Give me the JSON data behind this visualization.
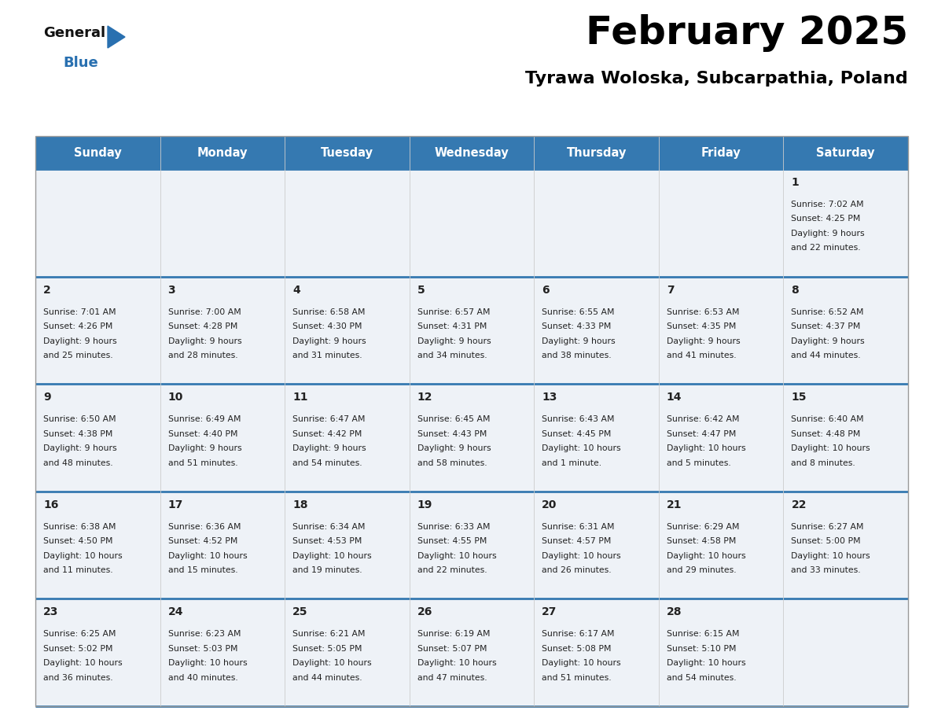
{
  "title": "February 2025",
  "subtitle": "Tyrawa Woloska, Subcarpathia, Poland",
  "days_of_week": [
    "Sunday",
    "Monday",
    "Tuesday",
    "Wednesday",
    "Thursday",
    "Friday",
    "Saturday"
  ],
  "header_bg": "#3579b1",
  "header_text": "#ffffff",
  "cell_bg_light": "#eef2f7",
  "divider_color": "#3579b1",
  "text_color": "#222222",
  "logo_general_color": "#111111",
  "logo_blue_color": "#2970b0",
  "num_rows": 5,
  "calendar_data": [
    {
      "day": 1,
      "col": 6,
      "row": 0,
      "sunrise": "7:02 AM",
      "sunset": "4:25 PM",
      "daylight": "9 hours and 22 minutes."
    },
    {
      "day": 2,
      "col": 0,
      "row": 1,
      "sunrise": "7:01 AM",
      "sunset": "4:26 PM",
      "daylight": "9 hours and 25 minutes."
    },
    {
      "day": 3,
      "col": 1,
      "row": 1,
      "sunrise": "7:00 AM",
      "sunset": "4:28 PM",
      "daylight": "9 hours and 28 minutes."
    },
    {
      "day": 4,
      "col": 2,
      "row": 1,
      "sunrise": "6:58 AM",
      "sunset": "4:30 PM",
      "daylight": "9 hours and 31 minutes."
    },
    {
      "day": 5,
      "col": 3,
      "row": 1,
      "sunrise": "6:57 AM",
      "sunset": "4:31 PM",
      "daylight": "9 hours and 34 minutes."
    },
    {
      "day": 6,
      "col": 4,
      "row": 1,
      "sunrise": "6:55 AM",
      "sunset": "4:33 PM",
      "daylight": "9 hours and 38 minutes."
    },
    {
      "day": 7,
      "col": 5,
      "row": 1,
      "sunrise": "6:53 AM",
      "sunset": "4:35 PM",
      "daylight": "9 hours and 41 minutes."
    },
    {
      "day": 8,
      "col": 6,
      "row": 1,
      "sunrise": "6:52 AM",
      "sunset": "4:37 PM",
      "daylight": "9 hours and 44 minutes."
    },
    {
      "day": 9,
      "col": 0,
      "row": 2,
      "sunrise": "6:50 AM",
      "sunset": "4:38 PM",
      "daylight": "9 hours and 48 minutes."
    },
    {
      "day": 10,
      "col": 1,
      "row": 2,
      "sunrise": "6:49 AM",
      "sunset": "4:40 PM",
      "daylight": "9 hours and 51 minutes."
    },
    {
      "day": 11,
      "col": 2,
      "row": 2,
      "sunrise": "6:47 AM",
      "sunset": "4:42 PM",
      "daylight": "9 hours and 54 minutes."
    },
    {
      "day": 12,
      "col": 3,
      "row": 2,
      "sunrise": "6:45 AM",
      "sunset": "4:43 PM",
      "daylight": "9 hours and 58 minutes."
    },
    {
      "day": 13,
      "col": 4,
      "row": 2,
      "sunrise": "6:43 AM",
      "sunset": "4:45 PM",
      "daylight": "10 hours and 1 minute."
    },
    {
      "day": 14,
      "col": 5,
      "row": 2,
      "sunrise": "6:42 AM",
      "sunset": "4:47 PM",
      "daylight": "10 hours and 5 minutes."
    },
    {
      "day": 15,
      "col": 6,
      "row": 2,
      "sunrise": "6:40 AM",
      "sunset": "4:48 PM",
      "daylight": "10 hours and 8 minutes."
    },
    {
      "day": 16,
      "col": 0,
      "row": 3,
      "sunrise": "6:38 AM",
      "sunset": "4:50 PM",
      "daylight": "10 hours and 11 minutes."
    },
    {
      "day": 17,
      "col": 1,
      "row": 3,
      "sunrise": "6:36 AM",
      "sunset": "4:52 PM",
      "daylight": "10 hours and 15 minutes."
    },
    {
      "day": 18,
      "col": 2,
      "row": 3,
      "sunrise": "6:34 AM",
      "sunset": "4:53 PM",
      "daylight": "10 hours and 19 minutes."
    },
    {
      "day": 19,
      "col": 3,
      "row": 3,
      "sunrise": "6:33 AM",
      "sunset": "4:55 PM",
      "daylight": "10 hours and 22 minutes."
    },
    {
      "day": 20,
      "col": 4,
      "row": 3,
      "sunrise": "6:31 AM",
      "sunset": "4:57 PM",
      "daylight": "10 hours and 26 minutes."
    },
    {
      "day": 21,
      "col": 5,
      "row": 3,
      "sunrise": "6:29 AM",
      "sunset": "4:58 PM",
      "daylight": "10 hours and 29 minutes."
    },
    {
      "day": 22,
      "col": 6,
      "row": 3,
      "sunrise": "6:27 AM",
      "sunset": "5:00 PM",
      "daylight": "10 hours and 33 minutes."
    },
    {
      "day": 23,
      "col": 0,
      "row": 4,
      "sunrise": "6:25 AM",
      "sunset": "5:02 PM",
      "daylight": "10 hours and 36 minutes."
    },
    {
      "day": 24,
      "col": 1,
      "row": 4,
      "sunrise": "6:23 AM",
      "sunset": "5:03 PM",
      "daylight": "10 hours and 40 minutes."
    },
    {
      "day": 25,
      "col": 2,
      "row": 4,
      "sunrise": "6:21 AM",
      "sunset": "5:05 PM",
      "daylight": "10 hours and 44 minutes."
    },
    {
      "day": 26,
      "col": 3,
      "row": 4,
      "sunrise": "6:19 AM",
      "sunset": "5:07 PM",
      "daylight": "10 hours and 47 minutes."
    },
    {
      "day": 27,
      "col": 4,
      "row": 4,
      "sunrise": "6:17 AM",
      "sunset": "5:08 PM",
      "daylight": "10 hours and 51 minutes."
    },
    {
      "day": 28,
      "col": 5,
      "row": 4,
      "sunrise": "6:15 AM",
      "sunset": "5:10 PM",
      "daylight": "10 hours and 54 minutes."
    }
  ]
}
